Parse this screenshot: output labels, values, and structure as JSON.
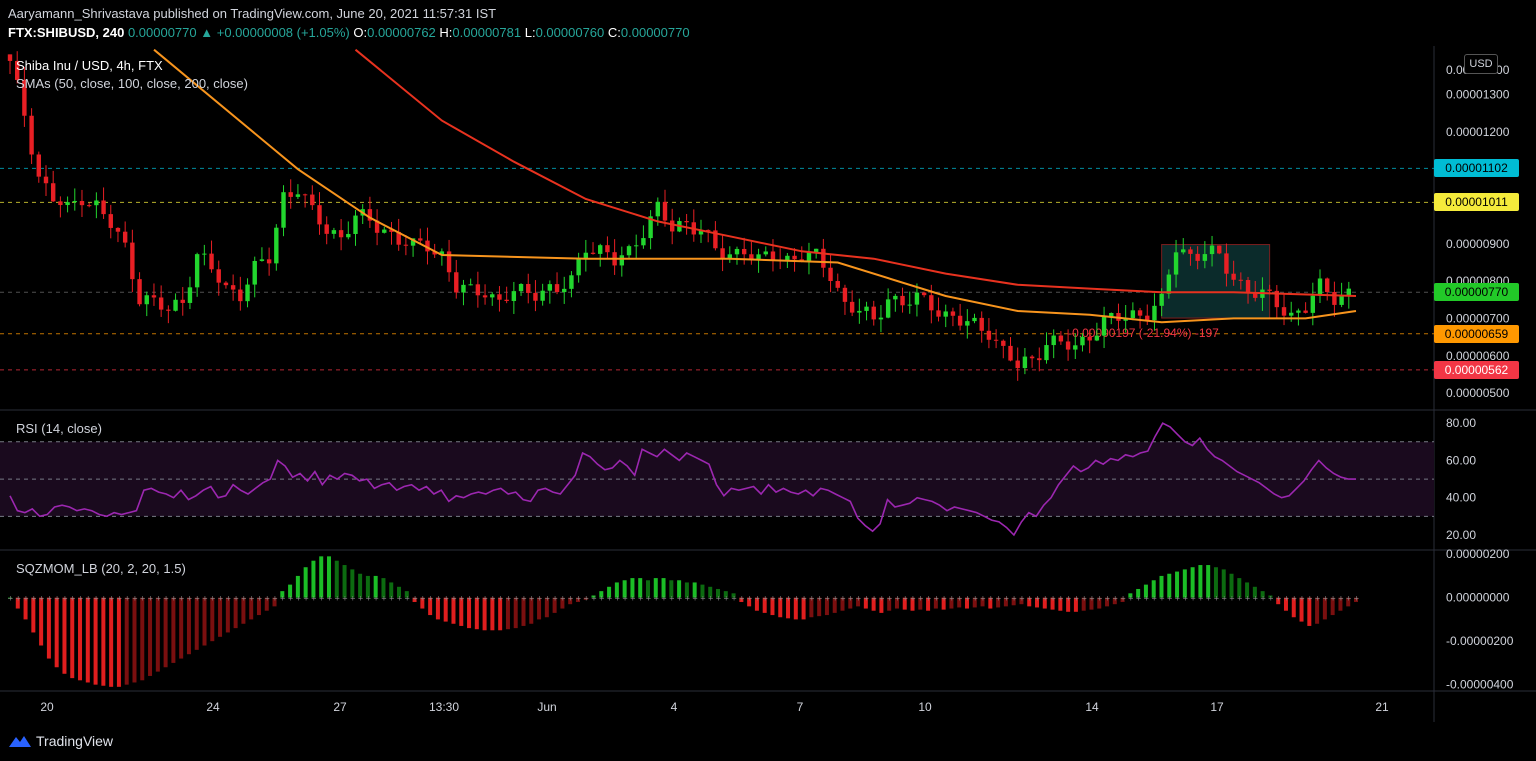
{
  "header": {
    "publisher_line": "Aaryamann_Shrivastava published on TradingView.com, June 20, 2021 11:57:31 IST",
    "symbol": "FTX:SHIBUSD, 240",
    "last": "0.00000770",
    "change": "+0.00000008 (+1.05%)",
    "open_label": "O:",
    "open": "0.00000762",
    "high_label": "H:",
    "high": "0.00000781",
    "low_label": "L:",
    "low": "0.00000760",
    "close_label": "C:",
    "close": "0.00000770"
  },
  "legend": {
    "title": "Shiba Inu / USD, 4h, FTX",
    "sma": "SMAs (50, close, 100, close, 200, close)",
    "rsi": "RSI (14, close)",
    "sqz": "SQZMOM_LB (20, 2, 20, 1.5)"
  },
  "currency_button": "USD",
  "price_tags": [
    {
      "text": "0.00001102",
      "bg": "#00bcd4",
      "fg": "#000000"
    },
    {
      "text": "0.00001011",
      "bg": "#f5eb3b",
      "fg": "#000000"
    },
    {
      "text": "0.00000770",
      "bg": "#22c928",
      "fg": "#000000"
    },
    {
      "text": "0.00000659",
      "bg": "#ff9800",
      "fg": "#000000"
    },
    {
      "text": "0.00000562",
      "bg": "#f23645",
      "fg": "#ffffff"
    }
  ],
  "measure_label": "-0.00000197 (-21.94%) -197",
  "branding": "TradingView",
  "colors": {
    "up": "#22d62e",
    "down": "#e81f24",
    "sma_red": "#e8321f",
    "sma_orange": "#f7941d",
    "rsi_line": "#9c27b0",
    "rsi_band": "#1a0a1e",
    "sqz_up": "#1bbd26",
    "sqz_up_dark": "#0c6b10",
    "sqz_down": "#e01e1e",
    "sqz_down_dark": "#7a0f0f"
  },
  "chart_data": [
    {
      "type": "candlestick",
      "title": "Shiba Inu / USD, 4h, FTX",
      "x_ticks": [
        "20",
        "24",
        "27",
        "13:30",
        "Jun",
        "4",
        "7",
        "10",
        "14",
        "17",
        "21"
      ],
      "y_ticks": [
        "0.00000500",
        "0.00000600",
        "0.00000700",
        "0.00000800",
        "0.00000900",
        "0.00001200",
        "0.00001300"
      ],
      "ylim": [
        4.6e-06,
        1.43e-05
      ],
      "horizontal_levels": [
        1.102e-05,
        1.011e-05,
        7.7e-06,
        6.59e-06,
        5.62e-06
      ],
      "close_points": [
        [
          0,
          1.38e-05
        ],
        [
          2,
          1.25e-05
        ],
        [
          4,
          1.08e-05
        ],
        [
          6,
          1.02e-05
        ],
        [
          8,
          9.9e-06
        ],
        [
          10,
          1.03e-05
        ],
        [
          12,
          1e-05
        ],
        [
          14,
          9.5e-06
        ],
        [
          16,
          8.9e-06
        ],
        [
          18,
          7.6e-06
        ],
        [
          20,
          7.4e-06
        ],
        [
          22,
          7.2e-06
        ],
        [
          24,
          7.5e-06
        ],
        [
          26,
          8.7e-06
        ],
        [
          28,
          8.3e-06
        ],
        [
          30,
          7.8e-06
        ],
        [
          32,
          7.7e-06
        ],
        [
          34,
          8.3e-06
        ],
        [
          36,
          8.6e-06
        ],
        [
          38,
          1.03e-05
        ],
        [
          40,
          1.05e-05
        ],
        [
          42,
          9.8e-06
        ],
        [
          44,
          9.4e-06
        ],
        [
          46,
          9.2e-06
        ],
        [
          48,
          9.7e-06
        ],
        [
          50,
          9.6e-06
        ],
        [
          52,
          9.4e-06
        ],
        [
          54,
          9.1e-06
        ],
        [
          56,
          8.9e-06
        ],
        [
          58,
          9e-06
        ],
        [
          60,
          8.7e-06
        ],
        [
          62,
          7.8e-06
        ],
        [
          64,
          7.7e-06
        ],
        [
          66,
          7.8e-06
        ],
        [
          68,
          7.4e-06
        ],
        [
          70,
          7.7e-06
        ],
        [
          72,
          7.7e-06
        ],
        [
          74,
          7.8e-06
        ],
        [
          76,
          7.7e-06
        ],
        [
          78,
          8e-06
        ],
        [
          80,
          9e-06
        ],
        [
          82,
          8.8e-06
        ],
        [
          84,
          8.5e-06
        ],
        [
          86,
          8.8e-06
        ],
        [
          88,
          9.4e-06
        ],
        [
          90,
          9.9e-06
        ],
        [
          92,
          9.4e-06
        ],
        [
          94,
          9.6e-06
        ],
        [
          96,
          9.4e-06
        ],
        [
          98,
          8.8e-06
        ],
        [
          100,
          8.7e-06
        ],
        [
          102,
          8.9e-06
        ],
        [
          104,
          8.5e-06
        ],
        [
          106,
          8.7e-06
        ],
        [
          108,
          8.6e-06
        ],
        [
          110,
          8.7e-06
        ],
        [
          112,
          8.6e-06
        ],
        [
          114,
          8.2e-06
        ],
        [
          116,
          7.4e-06
        ],
        [
          118,
          7.2e-06
        ],
        [
          120,
          6.9e-06
        ],
        [
          122,
          7.6e-06
        ],
        [
          124,
          7.4e-06
        ],
        [
          126,
          7.5e-06
        ],
        [
          128,
          7.4e-06
        ],
        [
          130,
          7.1e-06
        ],
        [
          132,
          6.9e-06
        ],
        [
          134,
          6.8e-06
        ],
        [
          136,
          6.7e-06
        ],
        [
          138,
          6.1e-06
        ],
        [
          140,
          5.7e-06
        ],
        [
          142,
          5.9e-06
        ],
        [
          144,
          6.4e-06
        ],
        [
          146,
          6.3e-06
        ],
        [
          148,
          6.2e-06
        ],
        [
          150,
          6.6e-06
        ],
        [
          152,
          6.9e-06
        ],
        [
          154,
          7e-06
        ],
        [
          156,
          7.1e-06
        ],
        [
          158,
          7.2e-06
        ],
        [
          160,
          7.4e-06
        ],
        [
          162,
          8.9e-06
        ],
        [
          164,
          8.7e-06
        ],
        [
          166,
          8.8e-06
        ],
        [
          168,
          8.6e-06
        ],
        [
          170,
          8.1e-06
        ],
        [
          172,
          7.8e-06
        ],
        [
          174,
          7.6e-06
        ],
        [
          176,
          7.4e-06
        ],
        [
          178,
          7.1e-06
        ],
        [
          180,
          7.3e-06
        ],
        [
          182,
          7.8e-06
        ],
        [
          184,
          7.6e-06
        ],
        [
          186,
          7.7e-06
        ]
      ],
      "series": [
        {
          "name": "SMA 50",
          "points": [
            [
              20,
              1.42e-05
            ],
            [
              40,
              1.1e-05
            ],
            [
              50,
              9.7e-06
            ],
            [
              60,
              8.7e-06
            ],
            [
              80,
              8.6e-06
            ],
            [
              100,
              8.6e-06
            ],
            [
              115,
              8.5e-06
            ],
            [
              130,
              7.6e-06
            ],
            [
              140,
              7.2e-06
            ],
            [
              150,
              7.1e-06
            ],
            [
              160,
              6.9e-06
            ],
            [
              170,
              7e-06
            ],
            [
              180,
              7e-06
            ],
            [
              187,
              7.2e-06
            ]
          ]
        },
        {
          "name": "SMA 100",
          "points": [
            [
              48,
              1.42e-05
            ],
            [
              60,
              1.23e-05
            ],
            [
              70,
              1.12e-05
            ],
            [
              80,
              1.02e-05
            ],
            [
              90,
              9.6e-06
            ],
            [
              100,
              9.2e-06
            ],
            [
              110,
              8.8e-06
            ],
            [
              120,
              8.6e-06
            ],
            [
              130,
              8.2e-06
            ],
            [
              140,
              7.9e-06
            ],
            [
              150,
              7.8e-06
            ],
            [
              160,
              7.7e-06
            ],
            [
              170,
              7.7e-06
            ],
            [
              187,
              7.6e-06
            ]
          ]
        }
      ]
    },
    {
      "type": "line",
      "title": "RSI (14, close)",
      "y_ticks": [
        "20.00",
        "40.00",
        "60.00",
        "80.00"
      ],
      "ylim": [
        13,
        86
      ],
      "bands": [
        30,
        50,
        70
      ],
      "series": [
        {
          "name": "RSI",
          "values": [
            41,
            33,
            32,
            34,
            30,
            31,
            35,
            36,
            35,
            33,
            34,
            33,
            31,
            30,
            32,
            31,
            32,
            33,
            44,
            45,
            43,
            42,
            40,
            44,
            39,
            41,
            44,
            46,
            40,
            41,
            47,
            44,
            42,
            45,
            48,
            50,
            60,
            57,
            51,
            53,
            49,
            54,
            47,
            52,
            50,
            53,
            52,
            49,
            50,
            45,
            47,
            48,
            44,
            46,
            47,
            44,
            46,
            42,
            44,
            38,
            41,
            40,
            42,
            43,
            42,
            44,
            45,
            42,
            43,
            39,
            38,
            44,
            45,
            43,
            42,
            47,
            52,
            64,
            62,
            58,
            55,
            56,
            60,
            57,
            52,
            66,
            64,
            62,
            66,
            63,
            60,
            64,
            62,
            60,
            58,
            47,
            41,
            45,
            44,
            45,
            46,
            42,
            47,
            43,
            45,
            43,
            42,
            44,
            41,
            45,
            44,
            42,
            40,
            38,
            29,
            25,
            22,
            26,
            39,
            35,
            36,
            37,
            40,
            39,
            38,
            36,
            33,
            35,
            34,
            33,
            32,
            30,
            28,
            27,
            24,
            20,
            27,
            32,
            30,
            36,
            40,
            47,
            52,
            57,
            54,
            56,
            60,
            58,
            61,
            60,
            63,
            62,
            64,
            65,
            73,
            80,
            78,
            74,
            70,
            68,
            72,
            66,
            62,
            60,
            57,
            54,
            52,
            50,
            48,
            45,
            42,
            40,
            41,
            45,
            49,
            55,
            60,
            56,
            53,
            51,
            50,
            50
          ]
        }
      ]
    },
    {
      "type": "bar",
      "title": "SQZMOM_LB (20, 2, 20, 1.5)",
      "y_ticks": [
        "0.00000200",
        "0.00000000",
        "-0.00000200",
        "-0.00000400"
      ],
      "ylim": [
        -4.2e-06,
        2.1e-06
      ],
      "series": [
        {
          "name": "SQZMOM_LB",
          "values": [
            0,
            -0.5,
            -1,
            -1.6,
            -2.2,
            -2.8,
            -3.2,
            -3.5,
            -3.7,
            -3.8,
            -3.9,
            -4,
            -4.05,
            -4.1,
            -4.1,
            -4,
            -3.9,
            -3.8,
            -3.6,
            -3.4,
            -3.2,
            -3,
            -2.8,
            -2.6,
            -2.4,
            -2.2,
            -2,
            -1.8,
            -1.6,
            -1.4,
            -1.2,
            -1,
            -0.8,
            -0.6,
            -0.4,
            0.3,
            0.6,
            1,
            1.4,
            1.7,
            1.9,
            1.9,
            1.7,
            1.5,
            1.3,
            1.1,
            1,
            1,
            0.9,
            0.7,
            0.5,
            0.3,
            -0.2,
            -0.5,
            -0.8,
            -1,
            -1.1,
            -1.2,
            -1.3,
            -1.4,
            -1.45,
            -1.5,
            -1.5,
            -1.5,
            -1.45,
            -1.4,
            -1.3,
            -1.2,
            -1,
            -0.9,
            -0.7,
            -0.5,
            -0.3,
            -0.2,
            -0.1,
            0.1,
            0.3,
            0.5,
            0.7,
            0.8,
            0.9,
            0.9,
            0.8,
            0.9,
            0.9,
            0.8,
            0.8,
            0.7,
            0.7,
            0.6,
            0.5,
            0.4,
            0.3,
            0.2,
            -0.2,
            -0.4,
            -0.6,
            -0.7,
            -0.8,
            -0.9,
            -0.95,
            -1,
            -1,
            -0.9,
            -0.85,
            -0.8,
            -0.7,
            -0.6,
            -0.5,
            -0.4,
            -0.5,
            -0.6,
            -0.7,
            -0.6,
            -0.5,
            -0.55,
            -0.6,
            -0.55,
            -0.6,
            -0.5,
            -0.55,
            -0.5,
            -0.45,
            -0.5,
            -0.45,
            -0.4,
            -0.5,
            -0.45,
            -0.4,
            -0.35,
            -0.3,
            -0.4,
            -0.45,
            -0.5,
            -0.55,
            -0.6,
            -0.65,
            -0.65,
            -0.6,
            -0.55,
            -0.5,
            -0.4,
            -0.3,
            -0.2,
            0.2,
            0.4,
            0.6,
            0.8,
            1,
            1.1,
            1.2,
            1.3,
            1.4,
            1.5,
            1.5,
            1.4,
            1.3,
            1.1,
            0.9,
            0.7,
            0.5,
            0.3,
            0.1,
            -0.3,
            -0.6,
            -0.9,
            -1.1,
            -1.3,
            -1.2,
            -1,
            -0.8,
            -0.6,
            -0.4,
            -0.2
          ]
        }
      ]
    }
  ]
}
